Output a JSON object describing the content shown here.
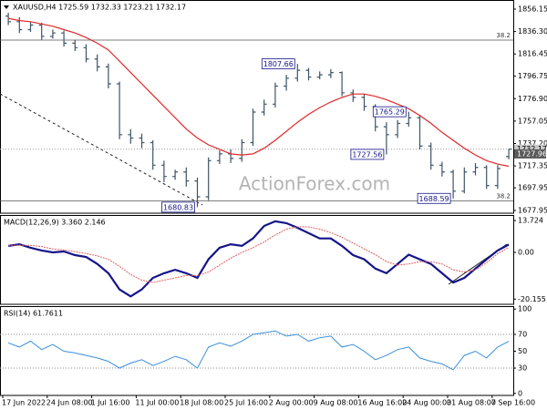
{
  "chart_data": [
    {
      "type": "ohlc",
      "title": "XAUUSD,H4  1725.59 1732.33 1723.21 1732.17",
      "categories": [
        "17 Jun 2022",
        null,
        null,
        null,
        "24 Jun 08:00",
        null,
        null,
        null,
        "1 Jul 16:00",
        null,
        null,
        null,
        "11 Jul 00:00",
        null,
        null,
        null,
        "18 Jul 08:00",
        null,
        null,
        null,
        "25 Jul 16:00",
        null,
        null,
        null,
        "2 Aug 00:00",
        null,
        null,
        null,
        "9 Aug 08:00",
        null,
        null,
        null,
        "16 Aug 16:00",
        null,
        null,
        null,
        "24 Aug 00:00",
        null,
        null,
        null,
        "31 Aug 08:00",
        null,
        null,
        null,
        "7 Sep 16:00",
        null
      ],
      "open": [
        1850,
        1845,
        1838,
        1842,
        1832,
        1835,
        1826,
        1822,
        1812,
        1805,
        1790,
        1745,
        1742,
        1738,
        1718,
        1708,
        1712,
        1704,
        1690,
        1722,
        1728,
        1724,
        1738,
        1765,
        1772,
        1788,
        1795,
        1802,
        1796,
        1798,
        1800,
        1782,
        1778,
        1770,
        1752,
        1745,
        1755,
        1760,
        1735,
        1718,
        1712,
        1695,
        1712,
        1716,
        1700,
        1725.59
      ],
      "high": [
        1853,
        1849,
        1845,
        1844,
        1838,
        1837,
        1829,
        1825,
        1816,
        1808,
        1792,
        1750,
        1746,
        1740,
        1722,
        1714,
        1716,
        1707,
        1725,
        1731,
        1732,
        1741,
        1768,
        1776,
        1791,
        1798,
        1807.66,
        1804,
        1801,
        1803,
        1801,
        1785,
        1781,
        1772,
        1756,
        1758,
        1765.29,
        1762,
        1738,
        1721,
        1714,
        1716,
        1720,
        1718,
        1718,
        1732.33
      ],
      "low": [
        1842,
        1835,
        1836,
        1829,
        1830,
        1823,
        1819,
        1809,
        1801,
        1786,
        1741,
        1737,
        1733,
        1714,
        1703,
        1705,
        1699,
        1680.83,
        1687,
        1719,
        1720,
        1721,
        1735,
        1762,
        1769,
        1784,
        1792,
        1793,
        1794,
        1795,
        1779,
        1774,
        1766,
        1748,
        1727.56,
        1742,
        1752,
        1732,
        1714,
        1708,
        1688.59,
        1693,
        1709,
        1697,
        1697,
        1723.21
      ],
      "close": [
        1845,
        1838,
        1842,
        1832,
        1835,
        1826,
        1822,
        1812,
        1805,
        1790,
        1745,
        1742,
        1738,
        1718,
        1708,
        1712,
        1704,
        1690,
        1722,
        1728,
        1724,
        1738,
        1765,
        1772,
        1788,
        1795,
        1802,
        1796,
        1798,
        1800,
        1782,
        1778,
        1770,
        1752,
        1745,
        1755,
        1760,
        1735,
        1718,
        1712,
        1695,
        1712,
        1716,
        1700,
        1715,
        1732.17
      ],
      "color": "#3b5568",
      "ma": {
        "color": "#e02828",
        "values": [
          1848,
          1846,
          1845,
          1843,
          1841,
          1838,
          1835,
          1831,
          1826,
          1820,
          1810,
          1800,
          1790,
          1780,
          1770,
          1760,
          1750,
          1742,
          1736,
          1732,
          1728,
          1727,
          1728,
          1733,
          1740,
          1748,
          1756,
          1763,
          1769,
          1774,
          1778,
          1781,
          1781,
          1779,
          1776,
          1772,
          1768,
          1762,
          1755,
          1747,
          1740,
          1733,
          1727,
          1722,
          1719,
          1717
        ]
      },
      "ylim": [
        1675.5,
        1864.2
      ],
      "yticks": [
        1856.15,
        {
          "value": 1836.3,
          "label": "1836.30"
        },
        1816.45,
        1796.75,
        {
          "value": 1776.9,
          "label": "1776.90"
        },
        1757.05,
        {
          "value": 1737.2,
          "label": "1737.20"
        },
        1717.35,
        1697.95,
        1677.95
      ],
      "annotations": [
        1807.66,
        1765.29,
        1727.56,
        1688.59,
        1680.83
      ],
      "price_labels": [
        1732.17,
        1727.96
      ],
      "fib_levels": [
        {
          "level": 38.2,
          "price": 1828.7
        },
        {
          "level": 38.2,
          "price": 1686.4
        }
      ],
      "watermark": "ActionForex.com"
    },
    {
      "type": "macd",
      "title": "MACD(12,26,9) 3.360 2.146",
      "series": [
        {
          "color": "#14148a",
          "values": [
            2.8,
            3.5,
            2,
            0.8,
            0,
            0.4,
            -1.2,
            -2,
            -5,
            -9,
            -16,
            -19,
            -16,
            -11,
            -9,
            -7.5,
            -9,
            -11,
            -3,
            2,
            3.5,
            2.8,
            6,
            11.4,
            13.4,
            12.6,
            10.6,
            8.3,
            6,
            6,
            2.8,
            -1.2,
            -3,
            -7,
            -9,
            -5,
            -1,
            -3,
            -5,
            -9,
            -13,
            -11,
            -7,
            -3,
            0.8,
            3.36
          ]
        },
        {
          "color": "#e06060",
          "values": [
            3,
            3,
            3,
            2.5,
            1.5,
            1,
            0.3,
            -0.5,
            -1.5,
            -3,
            -6,
            -9.5,
            -12,
            -13,
            -12,
            -11,
            -10,
            -10,
            -8.5,
            -5.5,
            -2.5,
            0,
            2,
            4.5,
            7.5,
            10,
            11,
            11,
            10,
            8.5,
            6.5,
            4,
            1.5,
            -1,
            -4,
            -5.5,
            -5,
            -4,
            -4,
            -5,
            -7.5,
            -8.5,
            -7.5,
            -4.5,
            -0.5,
            2.146
          ]
        }
      ],
      "ylim": [
        -22.4,
        16.1
      ],
      "yticks": [
        13.724,
        {
          "value": 0,
          "label": "0.00"
        },
        -20.155
      ]
    },
    {
      "type": "rsi",
      "title": "RSI(14) 61.7611",
      "color": "#3a8fdc",
      "values": [
        60,
        55,
        62,
        52,
        58,
        50,
        48,
        45,
        42,
        38,
        30,
        36,
        40,
        33,
        38,
        44,
        40,
        30,
        55,
        60,
        56,
        62,
        70,
        72,
        74,
        68,
        70,
        62,
        66,
        68,
        55,
        58,
        50,
        40,
        45,
        52,
        55,
        42,
        38,
        35,
        28,
        45,
        50,
        42,
        55,
        61.7611
      ],
      "ylim": [
        -2.4,
        103.5
      ],
      "yticks": [
        100,
        70,
        50,
        30,
        0
      ],
      "levels": [
        70,
        30
      ]
    }
  ]
}
